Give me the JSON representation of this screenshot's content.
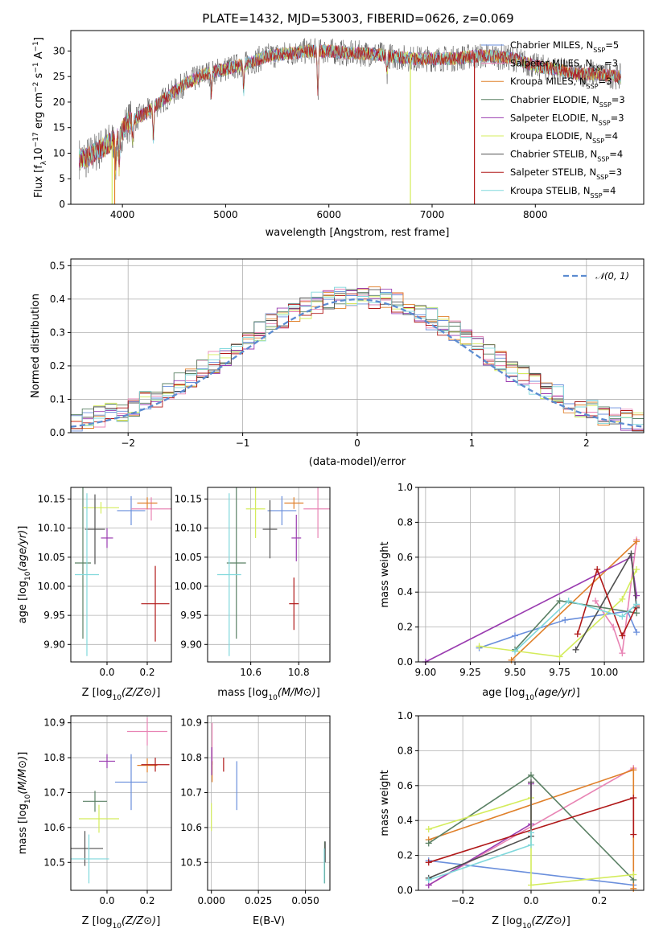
{
  "figure_title": "PLATE=1432, MJD=53003, FIBERID=0626, z=0.069",
  "series_colors": [
    "#6a8fdc",
    "#e884b4",
    "#e0802a",
    "#5a8064",
    "#9a3cb0",
    "#d4ec5c",
    "#505050",
    "#b01818",
    "#80d8dc"
  ],
  "chart_data": [
    {
      "id": "spectrum",
      "type": "line",
      "xlabel": "wavelength [Angstrom, rest frame]",
      "ylabel": "Flux [f_λ10^-17 erg cm^-2 s^-1 A^-1]",
      "ylabel_parts": {
        "main": "Flux [f",
        "sub": "λ",
        "mid": "10",
        "e1": "−17",
        "mid2": " erg cm",
        "e2": "−2",
        "mid3": " s",
        "e3": "−1",
        "mid4": " A",
        "e4": "−1",
        "end": "]"
      },
      "xlim": [
        3500,
        9050
      ],
      "ylim": [
        0,
        34
      ],
      "xticks": [
        4000,
        5000,
        6000,
        7000,
        8000
      ],
      "yticks": [
        0,
        5,
        10,
        15,
        20,
        25,
        30
      ],
      "continuum_points": [
        [
          3550,
          9
        ],
        [
          3650,
          9
        ],
        [
          3800,
          11
        ],
        [
          3950,
          13
        ],
        [
          4050,
          16
        ],
        [
          4200,
          17.5
        ],
        [
          4400,
          20.5
        ],
        [
          4600,
          23.5
        ],
        [
          4800,
          25.5
        ],
        [
          5000,
          26.5
        ],
        [
          5200,
          27.5
        ],
        [
          5400,
          29
        ],
        [
          5600,
          29.5
        ],
        [
          5800,
          30
        ],
        [
          6000,
          30
        ],
        [
          6200,
          29.5
        ],
        [
          6400,
          29.5
        ],
        [
          6600,
          29
        ],
        [
          6800,
          28.5
        ],
        [
          7000,
          28.5
        ],
        [
          7200,
          28.5
        ],
        [
          7400,
          29
        ],
        [
          7600,
          29
        ],
        [
          7800,
          28.5
        ],
        [
          8000,
          27
        ],
        [
          8200,
          26.5
        ],
        [
          8400,
          25.5
        ],
        [
          8600,
          25.5
        ],
        [
          8800,
          25
        ]
      ],
      "absorption_lines": [
        [
          3934,
          6
        ],
        [
          3968,
          6
        ],
        [
          4101,
          4
        ],
        [
          4300,
          6
        ],
        [
          4861,
          4
        ],
        [
          5175,
          5
        ],
        [
          5893,
          8
        ],
        [
          6563,
          3
        ]
      ],
      "legend": [
        {
          "name": "Chabrier MILES",
          "nssp": "5",
          "color": "#6a8fdc",
          "sep": "="
        },
        {
          "name": "Salpeter MILES",
          "nssp": "3",
          "color": "#e884b4",
          "sep": "="
        },
        {
          "name": "Kroupa MILES",
          "nssp": "3",
          "color": "#e0802a",
          "sep": "="
        },
        {
          "name": "Chabrier ELODIE",
          "nssp": "3",
          "color": "#5a8064",
          "sep": "="
        },
        {
          "name": "Salpeter ELODIE",
          "nssp": "3",
          "color": "#9a3cb0",
          "sep": "="
        },
        {
          "name": "Kroupa ELODIE",
          "nssp": "4",
          "color": "#d4ec5c",
          "sep": "="
        },
        {
          "name": "Chabrier STELIB",
          "nssp": "4",
          "color": "#505050",
          "sep": "="
        },
        {
          "name": "Salpeter STELIB",
          "nssp": "3",
          "color": "#b01818",
          "sep": "="
        },
        {
          "name": "Kroupa STELIB",
          "nssp": "4",
          "color": "#80d8dc",
          "sep": "="
        }
      ],
      "nssp_label": {
        "N": "N",
        "sub": "SSP"
      }
    },
    {
      "id": "residuals",
      "type": "histogram",
      "xlabel": "(data-model)/error",
      "ylabel": "Normed distribution",
      "xlim": [
        -2.5,
        2.5
      ],
      "ylim": [
        0,
        0.52
      ],
      "xticks": [
        -2,
        -1,
        0,
        1,
        2
      ],
      "yticks": [
        0.0,
        0.1,
        0.2,
        0.3,
        0.4,
        0.5
      ],
      "grid": true,
      "bin_width": 0.1,
      "legend": [
        {
          "name": "𝒩(0, 1)",
          "color": "#5b8bd0"
        }
      ],
      "legend_position": "upper right"
    },
    {
      "id": "age_vs_Z",
      "type": "errorbar",
      "xlabel": "Z [log10(Z/Z⊙)]",
      "ylabel": "age  [log10(age/yr)]",
      "xlim": [
        -0.18,
        0.32
      ],
      "ylim": [
        9.87,
        10.17
      ],
      "xticks": [
        0.0,
        0.2
      ],
      "yticks": [
        9.9,
        9.95,
        10.0,
        10.05,
        10.1,
        10.15
      ],
      "grid": true,
      "points": [
        {
          "x": 0.12,
          "y": 10.13,
          "xerr": 0.07,
          "yerr": 0.025,
          "color": "#6a8fdc"
        },
        {
          "x": 0.22,
          "y": 10.133,
          "xerr": 0.1,
          "yerr": 0.02,
          "color": "#e884b4"
        },
        {
          "x": 0.2,
          "y": 10.143,
          "xerr": 0.05,
          "yerr": 0.01,
          "color": "#e0802a"
        },
        {
          "x": -0.12,
          "y": 10.04,
          "xerr": 0.04,
          "yerr": 0.13,
          "color": "#5a8064"
        },
        {
          "x": 0.0,
          "y": 10.083,
          "xerr": 0.03,
          "yerr": 0.017,
          "color": "#9a3cb0"
        },
        {
          "x": -0.03,
          "y": 10.135,
          "xerr": 0.09,
          "yerr": 0.01,
          "color": "#d4ec5c"
        },
        {
          "x": -0.06,
          "y": 10.098,
          "xerr": 0.05,
          "yerr": 0.06,
          "color": "#505050"
        },
        {
          "x": 0.24,
          "y": 9.97,
          "xerr": 0.07,
          "yerr": 0.065,
          "color": "#b01818"
        },
        {
          "x": -0.1,
          "y": 10.02,
          "xerr": 0.06,
          "yerr": 0.14,
          "color": "#80d8dc"
        }
      ]
    },
    {
      "id": "age_vs_mass",
      "type": "errorbar",
      "xlabel": "mass [log10(M/M⊙)]",
      "ylabel": "",
      "xlim": [
        10.42,
        10.93
      ],
      "ylim": [
        9.87,
        10.17
      ],
      "xticks": [
        10.6,
        10.8
      ],
      "yticks": [
        9.9,
        9.95,
        10.0,
        10.05,
        10.1,
        10.15
      ],
      "grid": true,
      "points": [
        {
          "x": 10.73,
          "y": 10.13,
          "xerr": 0.06,
          "yerr": 0.025,
          "color": "#6a8fdc"
        },
        {
          "x": 10.88,
          "y": 10.133,
          "xerr": 0.06,
          "yerr": 0.05,
          "color": "#e884b4"
        },
        {
          "x": 10.78,
          "y": 10.143,
          "xerr": 0.04,
          "yerr": 0.01,
          "color": "#e0802a"
        },
        {
          "x": 10.54,
          "y": 10.04,
          "xerr": 0.04,
          "yerr": 0.13,
          "color": "#5a8064"
        },
        {
          "x": 10.79,
          "y": 10.083,
          "xerr": 0.02,
          "yerr": 0.04,
          "color": "#9a3cb0"
        },
        {
          "x": 10.62,
          "y": 10.133,
          "xerr": 0.04,
          "yerr": 0.05,
          "color": "#d4ec5c"
        },
        {
          "x": 10.68,
          "y": 10.098,
          "xerr": 0.03,
          "yerr": 0.05,
          "color": "#505050"
        },
        {
          "x": 10.78,
          "y": 9.97,
          "xerr": 0.02,
          "yerr": 0.045,
          "color": "#b01818"
        },
        {
          "x": 10.51,
          "y": 10.02,
          "xerr": 0.05,
          "yerr": 0.14,
          "color": "#80d8dc"
        }
      ]
    },
    {
      "id": "weight_vs_age",
      "type": "line",
      "xlabel": "age  [log10(age/yr)]",
      "ylabel": "mass weight",
      "xlim": [
        8.96,
        10.22
      ],
      "ylim": [
        0,
        1.0
      ],
      "xticks": [
        9.0,
        9.25,
        9.5,
        9.75,
        10.0
      ],
      "yticks": [
        0.0,
        0.2,
        0.4,
        0.6,
        0.8,
        1.0
      ],
      "grid": true,
      "series": [
        {
          "color": "#6a8fdc",
          "x": [
            9.3,
            9.5,
            9.78,
            10.13,
            10.18
          ],
          "y": [
            0.08,
            0.15,
            0.24,
            0.29,
            0.17
          ]
        },
        {
          "color": "#e884b4",
          "x": [
            9.95,
            10.05,
            10.1,
            10.18
          ],
          "y": [
            0.35,
            0.2,
            0.05,
            0.7
          ]
        },
        {
          "color": "#e0802a",
          "x": [
            9.48,
            10.18
          ],
          "y": [
            0.01,
            0.69
          ]
        },
        {
          "color": "#5a8064",
          "x": [
            9.5,
            9.75,
            10.18
          ],
          "y": [
            0.07,
            0.35,
            0.28
          ]
        },
        {
          "color": "#9a3cb0",
          "x": [
            9.0,
            10.15,
            10.18
          ],
          "y": [
            0.0,
            0.6,
            0.38
          ]
        },
        {
          "color": "#d4ec5c",
          "x": [
            9.3,
            9.75,
            10.1,
            10.18
          ],
          "y": [
            0.09,
            0.03,
            0.36,
            0.53
          ]
        },
        {
          "color": "#505050",
          "x": [
            9.84,
            10.15,
            10.18
          ],
          "y": [
            0.07,
            0.62,
            0.31
          ]
        },
        {
          "color": "#b01818",
          "x": [
            9.85,
            9.96,
            10.1,
            10.18
          ],
          "y": [
            0.16,
            0.53,
            0.15,
            0.32
          ]
        },
        {
          "color": "#80d8dc",
          "x": [
            9.5,
            9.8,
            10.1,
            10.18
          ],
          "y": [
            0.06,
            0.35,
            0.26,
            0.33
          ]
        }
      ]
    },
    {
      "id": "mass_vs_Z",
      "type": "errorbar",
      "xlabel": "Z [log10(Z/Z⊙)]",
      "ylabel": "mass [log10(M/M⊙)]",
      "xlim": [
        -0.18,
        0.32
      ],
      "ylim": [
        10.42,
        10.92
      ],
      "xticks": [
        0.0,
        0.2
      ],
      "yticks": [
        10.5,
        10.6,
        10.7,
        10.8,
        10.9
      ],
      "grid": true,
      "points": [
        {
          "x": 0.12,
          "y": 10.73,
          "xerr": 0.08,
          "yerr": 0.08,
          "color": "#6a8fdc"
        },
        {
          "x": 0.2,
          "y": 10.875,
          "xerr": 0.1,
          "yerr": 0.04,
          "color": "#e884b4"
        },
        {
          "x": 0.2,
          "y": 10.778,
          "xerr": 0.05,
          "yerr": 0.02,
          "color": "#e0802a"
        },
        {
          "x": -0.06,
          "y": 10.675,
          "xerr": 0.06,
          "yerr": 0.03,
          "color": "#5a8064"
        },
        {
          "x": 0.0,
          "y": 10.79,
          "xerr": 0.04,
          "yerr": 0.02,
          "color": "#9a3cb0"
        },
        {
          "x": -0.04,
          "y": 10.625,
          "xerr": 0.1,
          "yerr": 0.04,
          "color": "#d4ec5c"
        },
        {
          "x": -0.11,
          "y": 10.54,
          "xerr": 0.09,
          "yerr": 0.05,
          "color": "#505050"
        },
        {
          "x": 0.24,
          "y": 10.78,
          "xerr": 0.07,
          "yerr": 0.02,
          "color": "#b01818"
        },
        {
          "x": -0.09,
          "y": 10.51,
          "xerr": 0.1,
          "yerr": 0.07,
          "color": "#80d8dc"
        }
      ]
    },
    {
      "id": "mass_vs_EBV",
      "type": "errorbar",
      "xlabel": "E(B-V)",
      "ylabel": "",
      "xlim": [
        -0.002,
        0.063
      ],
      "ylim": [
        10.42,
        10.92
      ],
      "xticks": [
        0.0,
        0.025,
        0.05
      ],
      "yticks": [
        10.5,
        10.6,
        10.7,
        10.8,
        10.9
      ],
      "grid": true,
      "points": [
        {
          "x": 0.0135,
          "y": 10.72,
          "xerr": 0,
          "yerr": 0.07,
          "color": "#6a8fdc"
        },
        {
          "x": 0.0004,
          "y": 10.84,
          "xerr": 0,
          "yerr": 0.06,
          "color": "#e884b4"
        },
        {
          "x": 0.0004,
          "y": 10.76,
          "xerr": 0,
          "yerr": 0.03,
          "color": "#e0802a"
        },
        {
          "x": 0.0602,
          "y": 10.5,
          "xerr": 0,
          "yerr": 0.06,
          "color": "#5a8064"
        },
        {
          "x": 0.0002,
          "y": 10.79,
          "xerr": 0,
          "yerr": 0.04,
          "color": "#9a3cb0"
        },
        {
          "x": 0.0,
          "y": 10.63,
          "xerr": 0,
          "yerr": 0.04,
          "color": "#d4ec5c"
        },
        {
          "x": 0.0605,
          "y": 10.53,
          "xerr": 0,
          "yerr": 0.03,
          "color": "#505050"
        },
        {
          "x": 0.0065,
          "y": 10.78,
          "xerr": 0,
          "yerr": 0.02,
          "color": "#b01818"
        },
        {
          "x": 0.06,
          "y": 10.49,
          "xerr": 0,
          "yerr": 0.05,
          "color": "#80d8dc"
        }
      ]
    },
    {
      "id": "weight_vs_Z",
      "type": "line",
      "xlabel": "Z [log10(Z/Z⊙)]",
      "ylabel": "mass weight",
      "xlim": [
        -0.33,
        0.33
      ],
      "ylim": [
        0,
        1.0
      ],
      "xticks": [
        -0.2,
        0.0,
        0.2
      ],
      "yticks": [
        0.0,
        0.2,
        0.4,
        0.6,
        0.8,
        1.0
      ],
      "grid": true,
      "series": [
        {
          "color": "#6a8fdc",
          "x": [
            -0.3,
            0.3
          ],
          "y": [
            0.17,
            0.03
          ]
        },
        {
          "color": "#e884b4",
          "x": [
            -0.3,
            0.3
          ],
          "y": [
            0.03,
            0.7
          ]
        },
        {
          "color": "#e0802a",
          "x": [
            -0.3,
            0.3,
            0.3
          ],
          "y": [
            0.29,
            0.69,
            0.01
          ]
        },
        {
          "color": "#5a8064",
          "x": [
            -0.3,
            0.0,
            0.3
          ],
          "y": [
            0.27,
            0.66,
            0.06
          ]
        },
        {
          "color": "#9a3cb0",
          "x": [
            -0.3,
            0.0,
            0.0
          ],
          "y": [
            0.03,
            0.38,
            0.61
          ]
        },
        {
          "color": "#d4ec5c",
          "x": [
            -0.3,
            0.0,
            0.0,
            0.3
          ],
          "y": [
            0.35,
            0.53,
            0.03,
            0.09
          ]
        },
        {
          "color": "#505050",
          "x": [
            -0.3,
            0.0,
            0.0
          ],
          "y": [
            0.07,
            0.31,
            0.62
          ]
        },
        {
          "color": "#b01818",
          "x": [
            -0.3,
            0.3,
            0.3
          ],
          "y": [
            0.16,
            0.53,
            0.32
          ]
        },
        {
          "color": "#80d8dc",
          "x": [
            -0.3,
            0.0,
            0.0
          ],
          "y": [
            0.06,
            0.26,
            0.33
          ]
        }
      ]
    }
  ]
}
